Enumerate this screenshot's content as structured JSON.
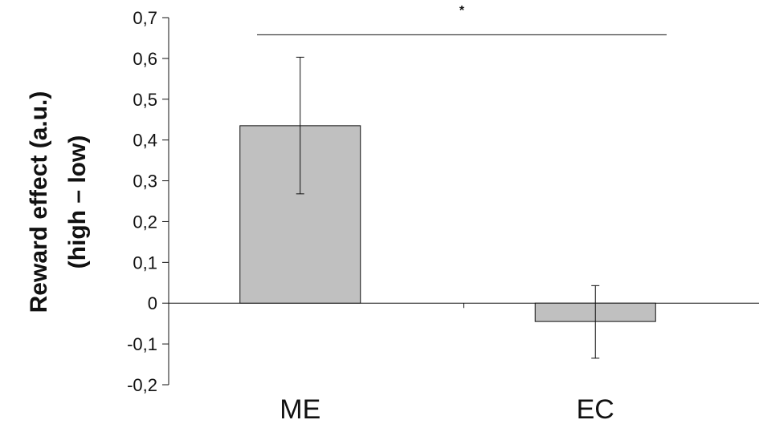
{
  "chart_data": {
    "type": "bar",
    "categories": [
      "ME",
      "EC"
    ],
    "values": [
      0.435,
      -0.045
    ],
    "error_upper": [
      0.603,
      0.043
    ],
    "error_lower": [
      0.268,
      -0.135
    ],
    "ylabel_lines": [
      "Reward effect  (a.u.)",
      "(high – low)"
    ],
    "xlabel": "",
    "title": "",
    "ylim": [
      -0.2,
      0.7
    ],
    "yticks": [
      -0.2,
      -0.1,
      0,
      0.1,
      0.2,
      0.3,
      0.4,
      0.5,
      0.6,
      0.7
    ],
    "ytick_labels": [
      "-0,2",
      "-0,1",
      "0",
      "0,1",
      "0,2",
      "0,3",
      "0,4",
      "0,5",
      "0,6",
      "0,7"
    ],
    "significance": {
      "between": [
        "ME",
        "EC"
      ],
      "label": "*",
      "y": 0.658
    },
    "bar_color": "#c0c0c0",
    "grid": false,
    "legend": "none"
  }
}
